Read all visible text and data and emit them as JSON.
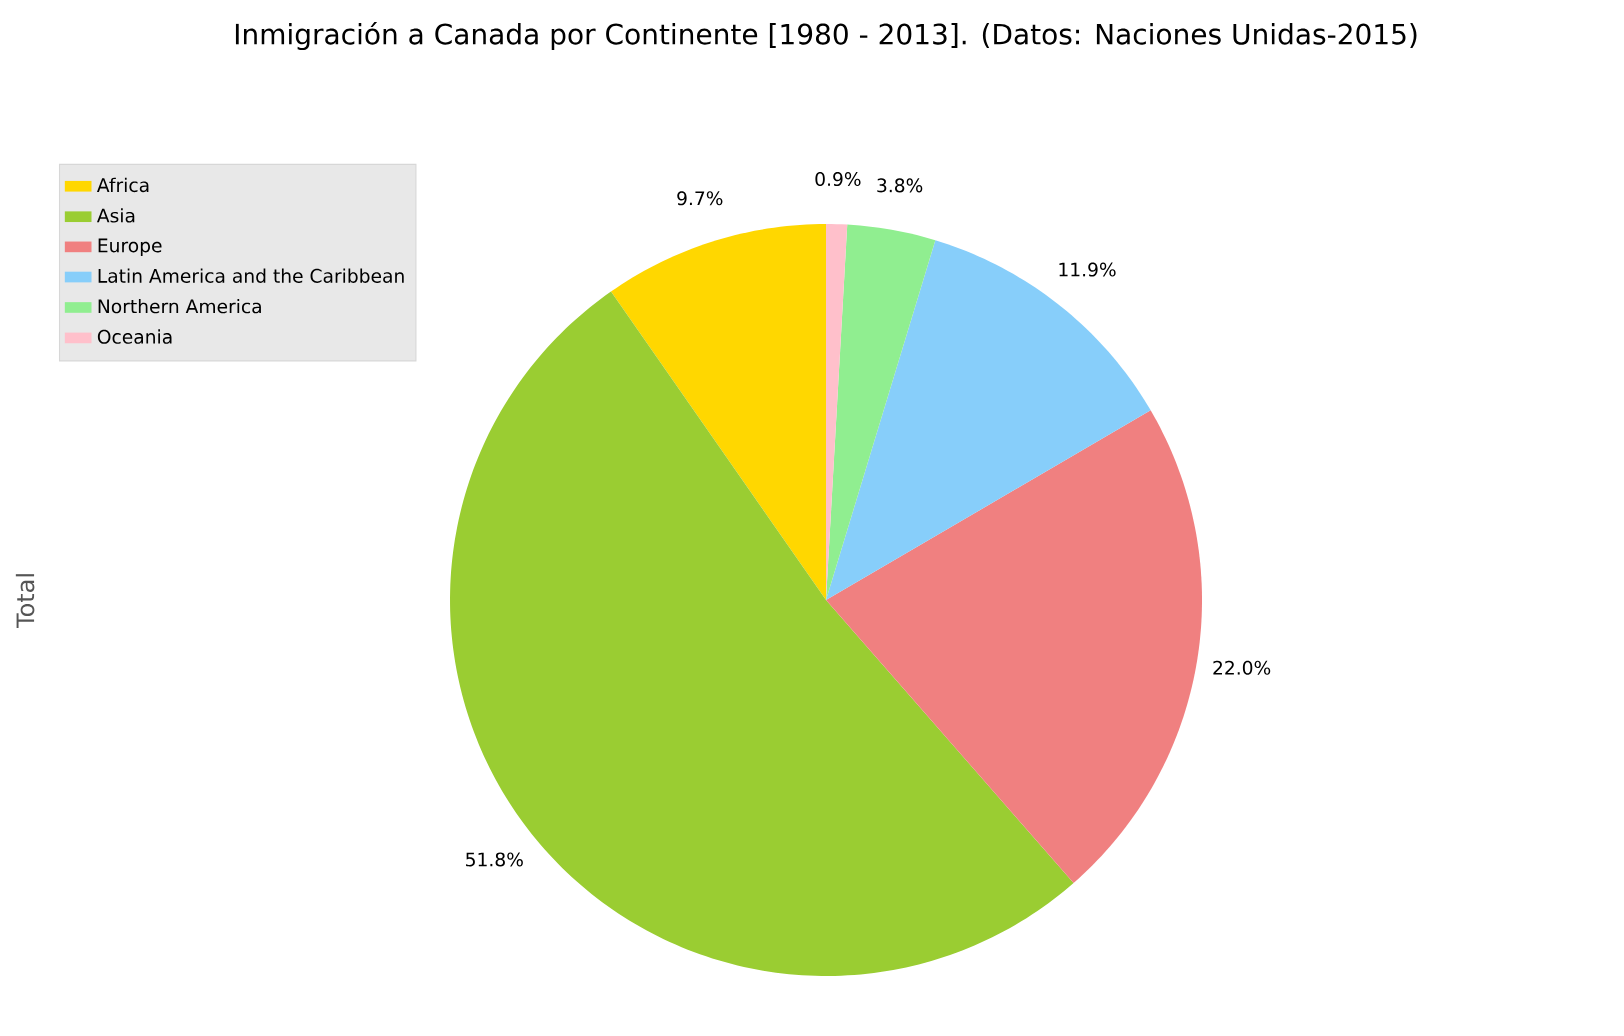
{
  "chart_data": {
    "type": "pie",
    "title": "Inmigración a Canada por Continente [1980 - 2013]. (Datos: Naciones Unidas-2015)",
    "ylabel": "Total",
    "categories": [
      "Africa",
      "Asia",
      "Europe",
      "Latin America and the Caribbean",
      "Northern America",
      "Oceania"
    ],
    "values": [
      9.7,
      51.8,
      22.0,
      11.9,
      3.8,
      0.9
    ],
    "value_labels": [
      "9.7%",
      "51.8%",
      "22.0%",
      "11.9%",
      "3.8%",
      "0.9%"
    ],
    "colors": [
      "#ffd700",
      "#9acd32",
      "#f08080",
      "#87cefa",
      "#90ee90",
      "#ffc0cb"
    ],
    "legend": "top left"
  }
}
